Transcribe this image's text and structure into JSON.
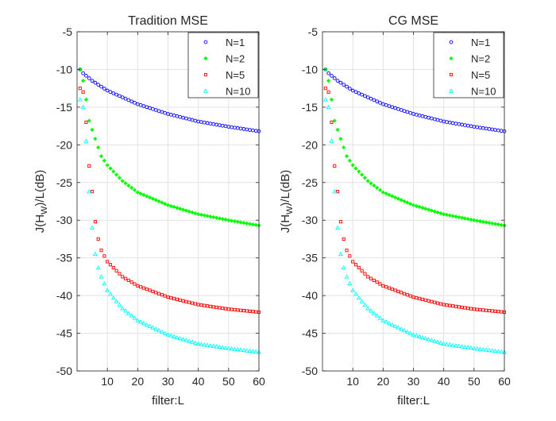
{
  "chart_data": [
    {
      "type": "scatter",
      "title": "Tradition MSE",
      "xlabel": "filter:L",
      "ylabel_main": "J(H",
      "ylabel_sub": "W",
      "ylabel_tail": ")/L(dB)",
      "xlim": [
        0,
        60
      ],
      "ylim": [
        -50,
        -5
      ],
      "xticks": [
        10,
        20,
        30,
        40,
        50,
        60
      ],
      "yticks": [
        -5,
        -10,
        -15,
        -20,
        -25,
        -30,
        -35,
        -40,
        -45,
        -50
      ],
      "grid": true,
      "legend_position": "top-right",
      "series": [
        {
          "name": "N=1",
          "marker": "circle",
          "color": "#0000ff",
          "x": [
            1,
            2,
            5,
            10,
            20,
            30,
            40,
            50,
            60
          ],
          "y": [
            -10.0,
            -10.5,
            -11.5,
            -12.8,
            -14.6,
            -15.9,
            -16.9,
            -17.6,
            -18.2
          ]
        },
        {
          "name": "N=2",
          "marker": "diamond",
          "color": "#00ff00",
          "x": [
            1,
            2,
            3,
            4,
            5,
            6,
            8,
            10,
            15,
            20,
            30,
            40,
            50,
            60
          ],
          "y": [
            -10.0,
            -11.5,
            -14.0,
            -16.8,
            -18.0,
            -19.2,
            -21.5,
            -22.7,
            -24.8,
            -26.3,
            -28.0,
            -29.2,
            -30.0,
            -30.7
          ]
        },
        {
          "name": "N=5",
          "marker": "square",
          "color": "#ff0000",
          "x": [
            1,
            2,
            3,
            4,
            5,
            6,
            7,
            8,
            10,
            12,
            15,
            20,
            30,
            40,
            50,
            60
          ],
          "y": [
            -12.5,
            -13.0,
            -17.0,
            -22.8,
            -26.2,
            -30.2,
            -32.5,
            -34.0,
            -35.5,
            -36.3,
            -37.5,
            -38.7,
            -40.2,
            -41.2,
            -41.8,
            -42.2
          ]
        },
        {
          "name": "N=10",
          "marker": "triangle",
          "color": "#00ffff",
          "x": [
            1,
            2,
            3,
            4,
            5,
            6,
            7,
            8,
            10,
            12,
            15,
            20,
            30,
            40,
            50,
            60
          ],
          "y": [
            -14.0,
            -15.0,
            -19.5,
            -26.2,
            -31.0,
            -34.5,
            -36.3,
            -37.5,
            -39.3,
            -40.3,
            -41.7,
            -43.3,
            -45.2,
            -46.4,
            -47.0,
            -47.5
          ]
        }
      ]
    },
    {
      "type": "scatter",
      "title": "CG MSE",
      "xlabel": "filter:L",
      "ylabel_main": "J(H",
      "ylabel_sub": "W",
      "ylabel_tail": ")/L(dB)",
      "xlim": [
        0,
        60
      ],
      "ylim": [
        -50,
        -5
      ],
      "xticks": [
        10,
        20,
        30,
        40,
        50,
        60
      ],
      "yticks": [
        -5,
        -10,
        -15,
        -20,
        -25,
        -30,
        -35,
        -40,
        -45,
        -50
      ],
      "grid": true,
      "legend_position": "top-right",
      "series": [
        {
          "name": "N=1",
          "marker": "circle",
          "color": "#0000ff",
          "x": [
            1,
            2,
            5,
            10,
            20,
            30,
            40,
            50,
            60
          ],
          "y": [
            -10.0,
            -10.5,
            -11.5,
            -12.8,
            -14.6,
            -15.9,
            -16.9,
            -17.6,
            -18.2
          ]
        },
        {
          "name": "N=2",
          "marker": "diamond",
          "color": "#00ff00",
          "x": [
            1,
            2,
            3,
            4,
            5,
            6,
            8,
            10,
            15,
            20,
            30,
            40,
            50,
            60
          ],
          "y": [
            -10.0,
            -11.5,
            -14.0,
            -16.8,
            -18.0,
            -19.2,
            -21.5,
            -22.7,
            -24.8,
            -26.3,
            -28.0,
            -29.2,
            -30.0,
            -30.7
          ]
        },
        {
          "name": "N=5",
          "marker": "square",
          "color": "#ff0000",
          "x": [
            1,
            2,
            3,
            4,
            5,
            6,
            7,
            8,
            10,
            12,
            15,
            20,
            30,
            40,
            50,
            60
          ],
          "y": [
            -12.5,
            -13.0,
            -17.0,
            -22.8,
            -26.2,
            -30.2,
            -32.5,
            -34.0,
            -35.5,
            -36.3,
            -37.5,
            -38.7,
            -40.2,
            -41.2,
            -41.8,
            -42.2
          ]
        },
        {
          "name": "N=10",
          "marker": "triangle",
          "color": "#00ffff",
          "x": [
            1,
            2,
            3,
            4,
            5,
            6,
            7,
            8,
            10,
            12,
            15,
            20,
            30,
            40,
            50,
            60
          ],
          "y": [
            -14.0,
            -15.0,
            -19.5,
            -26.2,
            -31.0,
            -34.5,
            -36.3,
            -37.5,
            -39.3,
            -40.3,
            -41.7,
            -43.3,
            -45.2,
            -46.4,
            -47.0,
            -47.5
          ]
        }
      ]
    }
  ]
}
